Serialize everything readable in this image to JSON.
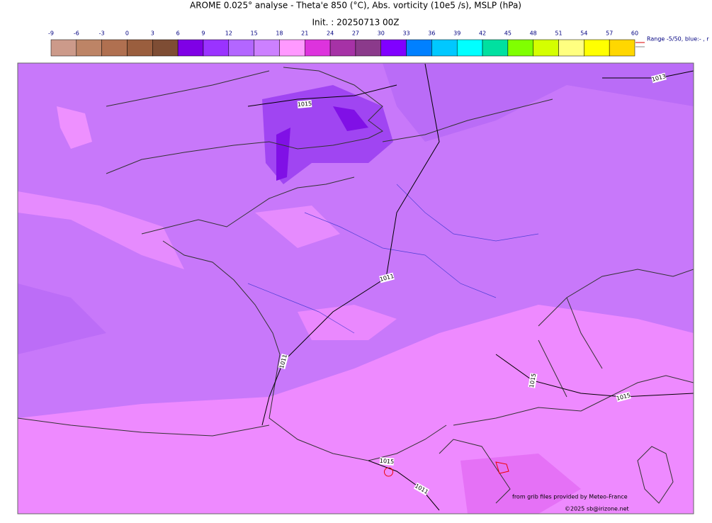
{
  "header": {
    "title": "AROME 0.025° analyse - Theta'e 850 (°C), Abs. vorticity (10e5 /s), MSLP (hPa)",
    "init": "Init. : 20250713 00Z"
  },
  "colorbar": {
    "ticks": [
      -9,
      -6,
      -3,
      0,
      3,
      6,
      9,
      12,
      15,
      18,
      21,
      24,
      27,
      30,
      33,
      36,
      39,
      42,
      45,
      48,
      51,
      54,
      57,
      60
    ],
    "colors": [
      "#cc9a8a",
      "#bd8466",
      "#b07050",
      "#9a5e3e",
      "#7e4d34",
      "#7f00e6",
      "#9a33ff",
      "#b366ff",
      "#cc80ff",
      "#ff99ff",
      "#dd33dd",
      "#a632a6",
      "#8b3a8b",
      "#8000ff",
      "#0080ff",
      "#00c8ff",
      "#00ffff",
      "#00e0a0",
      "#80ff00",
      "#d4ff00",
      "#ffff80",
      "#ffff00",
      "#ffd700"
    ],
    "range_note": "Range -5/50, blue:- , r"
  },
  "isobars": [
    "1013",
    "1015",
    "1011",
    "1011",
    "1015",
    "1015",
    "1015",
    "1011"
  ],
  "footer": {
    "source": "from grib files provided by Meteo-France",
    "copyright": "©2025 sb@irizone.net"
  }
}
